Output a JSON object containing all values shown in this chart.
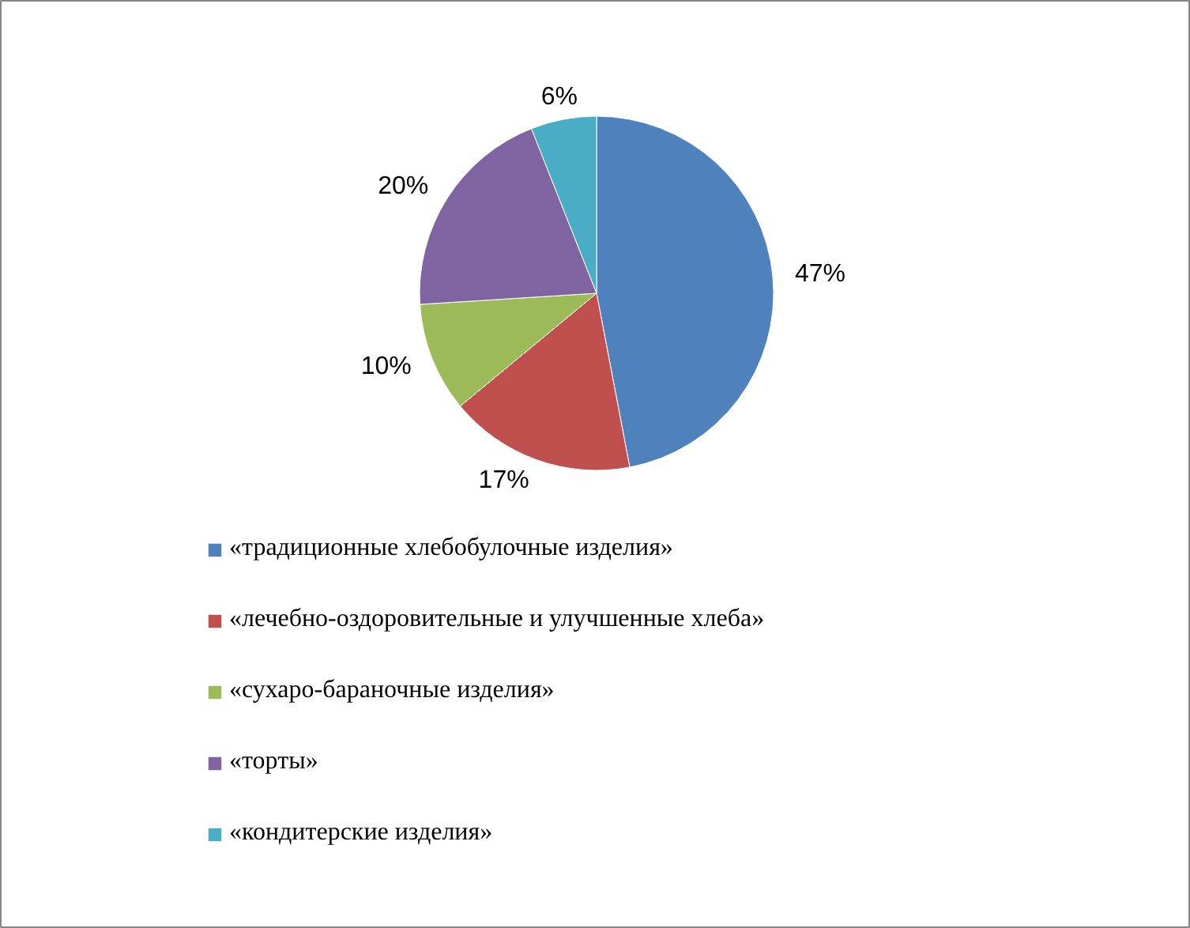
{
  "chart_data": {
    "type": "pie",
    "categories": [
      "«традиционные хлебобулочные изделия»",
      "«лечебно-оздоровительные и улучшенные хлеба»",
      "«сухаро-бараночные изделия»",
      "«торты»",
      "«кондитерские изделия»"
    ],
    "values": [
      47,
      17,
      10,
      20,
      6
    ],
    "colors": [
      "#4f81bd",
      "#c0504d",
      "#9bbb59",
      "#8064a2",
      "#4bacc6"
    ],
    "value_labels": [
      "47%",
      "17%",
      "10%",
      "20%",
      "6%"
    ],
    "legend": "bottom"
  }
}
